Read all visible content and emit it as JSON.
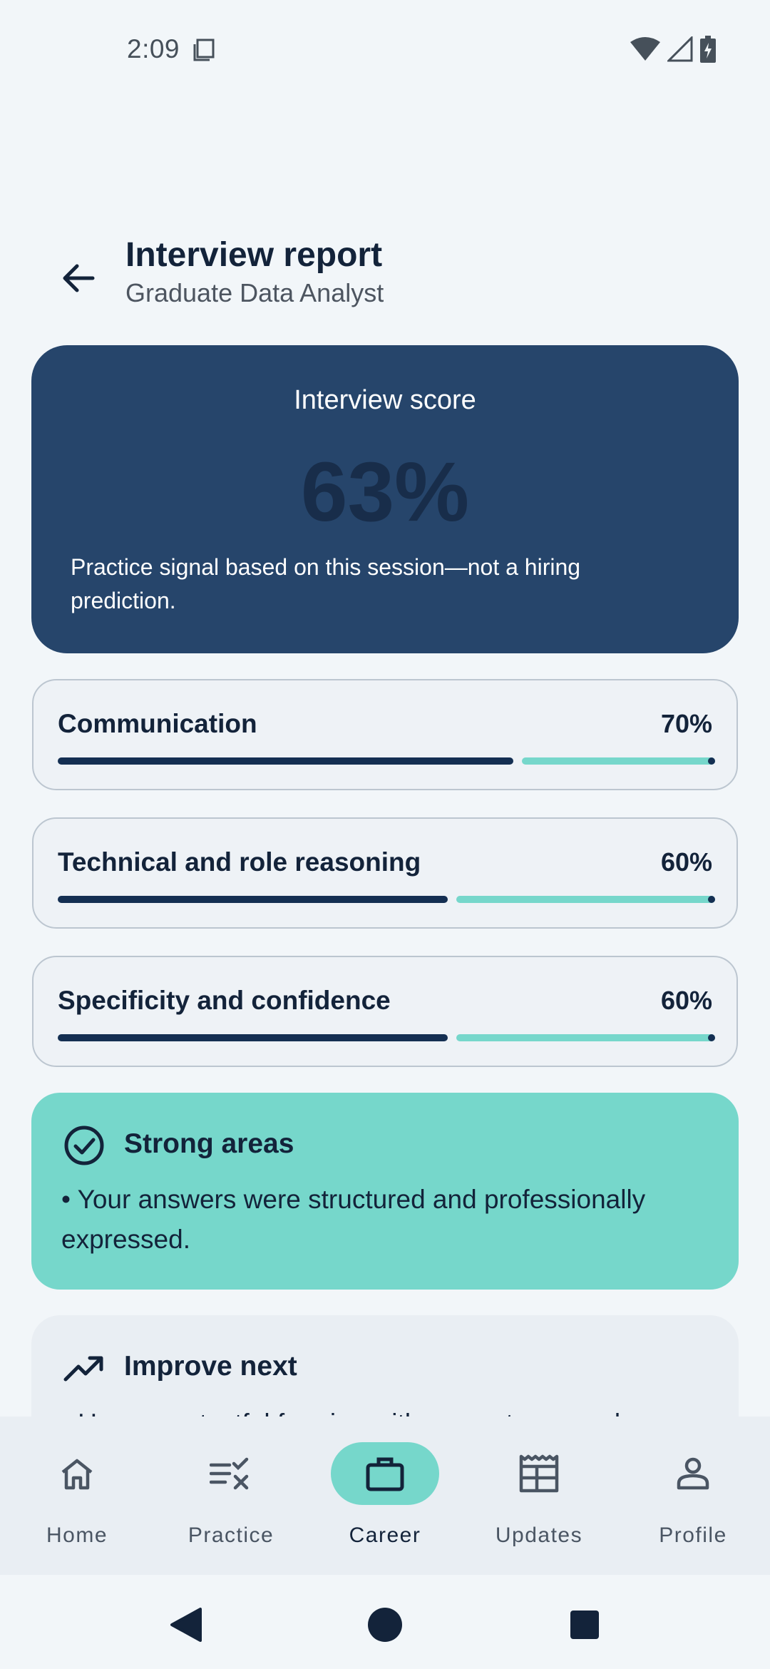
{
  "status_bar": {
    "time": "2:09"
  },
  "header": {
    "title": "Interview report",
    "subtitle": "Graduate Data Analyst"
  },
  "score_card": {
    "label": "Interview score",
    "value": "63%",
    "note": "Practice signal based on this session—not a hiring prediction."
  },
  "metrics": [
    {
      "label": "Communication",
      "value": "70%",
      "fraction": 0.7
    },
    {
      "label": "Technical and role reasoning",
      "value": "60%",
      "fraction": 0.6
    },
    {
      "label": "Specificity and confidence",
      "value": "60%",
      "fraction": 0.6
    }
  ],
  "strong_areas": {
    "title": "Strong areas",
    "body": "• Your answers were structured and professionally expressed."
  },
  "improve_next": {
    "title": "Improve next",
    "body": "• Use more tactful framing with concrete examples."
  },
  "bottom_nav": {
    "items": [
      {
        "label": "Home",
        "icon": "home-icon"
      },
      {
        "label": "Practice",
        "icon": "practice-icon"
      },
      {
        "label": "Career",
        "icon": "briefcase-icon"
      },
      {
        "label": "Updates",
        "icon": "newspaper-icon"
      },
      {
        "label": "Profile",
        "icon": "person-icon"
      }
    ],
    "active": "Career"
  },
  "colors": {
    "background": "#f2f6f9",
    "score_card": "#26456b",
    "accent_teal": "#76d7cb",
    "navy": "#142f52"
  }
}
